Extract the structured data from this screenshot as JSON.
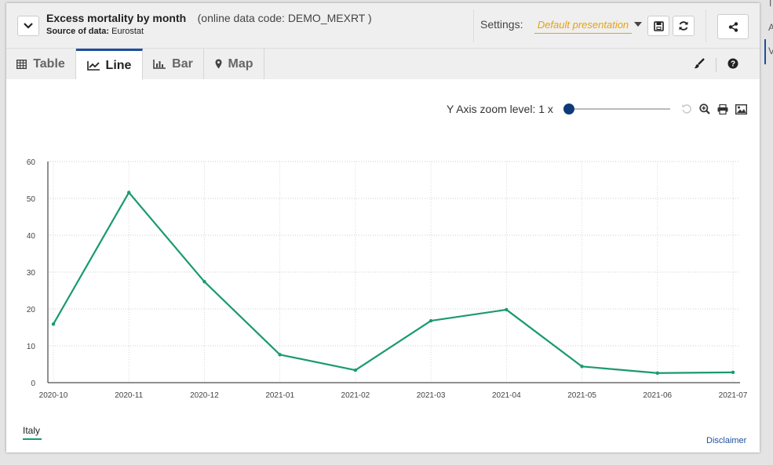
{
  "header": {
    "title": "Excess mortality by month",
    "code_text": "(online data code: DEMO_MEXRT )",
    "source_label": "Source of data:",
    "source_value": "Eurostat",
    "settings_label": "Settings:",
    "presentation": "Default presentation"
  },
  "tabs": [
    {
      "label": "Table",
      "icon": "table-icon"
    },
    {
      "label": "Line",
      "icon": "line-chart-icon"
    },
    {
      "label": "Bar",
      "icon": "bar-chart-icon"
    },
    {
      "label": "Map",
      "icon": "map-marker-icon"
    }
  ],
  "active_tab": "Line",
  "zoom": {
    "label": "Y Axis zoom level: 1 x",
    "level": 1
  },
  "right_edge": {
    "char_top": "I",
    "char_mid": "A",
    "char_sel": "V"
  },
  "footer": {
    "disclaimer": "Disclaimer"
  },
  "colors": {
    "line": "#1a9a6e",
    "accent": "#1f4e9e",
    "presentation": "#e8a20c"
  },
  "chart_data": {
    "type": "line",
    "title": "",
    "xlabel": "",
    "ylabel": "",
    "ylim": [
      0,
      60
    ],
    "yticks": [
      0,
      10,
      20,
      30,
      40,
      50,
      60
    ],
    "grid": true,
    "legend_position": "bottom-left",
    "x": [
      "2020-10",
      "2020-11",
      "2020-12",
      "2021-01",
      "2021-02",
      "2021-03",
      "2021-04",
      "2021-05",
      "2021-06",
      "2021-07"
    ],
    "series": [
      {
        "name": "Italy",
        "values": [
          15.9,
          51.6,
          27.4,
          7.6,
          3.4,
          16.8,
          19.8,
          4.4,
          2.6,
          2.8
        ]
      }
    ]
  }
}
